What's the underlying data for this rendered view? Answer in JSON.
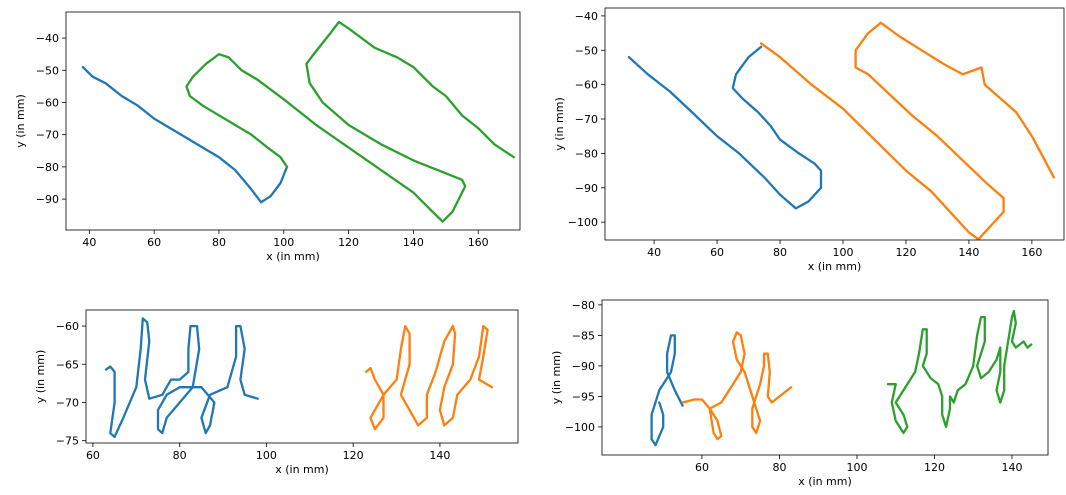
{
  "chart_data": [
    {
      "type": "line",
      "xlabel": "x (in mm)",
      "ylabel": "y (in mm)",
      "xlim": [
        32.8,
        172.9
      ],
      "ylim": [
        -99.6,
        -31.9
      ],
      "xticks": [
        40,
        60,
        80,
        100,
        120,
        140,
        160
      ],
      "yticks": [
        {
          "value": -40,
          "label": "−40"
        },
        {
          "value": -50,
          "label": "−50"
        },
        {
          "value": -60,
          "label": "−60"
        },
        {
          "value": -70,
          "label": "−70"
        },
        {
          "value": -80,
          "label": "−80"
        },
        {
          "value": -90,
          "label": "−90"
        }
      ],
      "series": [
        {
          "color": "#1f77b4",
          "x": [
            38,
            41,
            45,
            50,
            55,
            60,
            65,
            70,
            75,
            80,
            85,
            90,
            93,
            96,
            99,
            101
          ],
          "values": [
            -49,
            -52,
            -54,
            -58,
            -61,
            -65,
            -68,
            -71,
            -74,
            -77,
            -81,
            -87,
            -91,
            -89,
            -85,
            -80
          ]
        },
        {
          "color": "#2ca02c",
          "x": [
            101,
            99,
            95,
            90,
            85,
            80,
            75,
            71,
            70,
            72,
            76,
            80,
            83,
            87,
            92,
            100,
            110,
            120,
            130,
            140,
            146,
            149,
            152,
            154,
            156,
            155,
            150,
            140,
            130,
            120,
            112,
            108,
            107,
            110,
            114,
            117,
            120,
            128,
            135,
            140,
            146,
            150,
            155,
            160,
            165,
            171
          ],
          "values": [
            -80,
            -77,
            -74,
            -70,
            -67,
            -64,
            -61,
            -58,
            -55,
            -52,
            -48,
            -45,
            -46,
            -50,
            -53,
            -59,
            -67,
            -74,
            -81,
            -88,
            -94,
            -97,
            -94,
            -90,
            -86,
            -84,
            -82,
            -78,
            -73,
            -67,
            -60,
            -54,
            -48,
            -44,
            -39,
            -35,
            -37,
            -43,
            -46,
            -49,
            -55,
            -58,
            -64,
            -68,
            -73,
            -77
          ]
        }
      ]
    },
    {
      "type": "line",
      "xlabel": "x (in mm)",
      "ylabel": "y (in mm)",
      "xlim": [
        24.4,
        170.2
      ],
      "ylim": [
        -105.2,
        -37.7
      ],
      "xticks": [
        40,
        60,
        80,
        100,
        120,
        140,
        160
      ],
      "yticks": [
        {
          "value": -40,
          "label": "−40"
        },
        {
          "value": -50,
          "label": "−50"
        },
        {
          "value": -60,
          "label": "−60"
        },
        {
          "value": -70,
          "label": "−70"
        },
        {
          "value": -80,
          "label": "−80"
        },
        {
          "value": -90,
          "label": "−90"
        },
        {
          "value": -100,
          "label": "−100"
        }
      ],
      "series": [
        {
          "color": "#1f77b4",
          "x": [
            32,
            38,
            45,
            52,
            60,
            67,
            75,
            80,
            85,
            89,
            93,
            93,
            91,
            86,
            80,
            77,
            73,
            68,
            65,
            66,
            70,
            74
          ],
          "values": [
            -52,
            -57,
            -62,
            -68,
            -75,
            -80,
            -87,
            -92,
            -96,
            -94,
            -90,
            -85,
            -83,
            -80,
            -76,
            -72,
            -68,
            -64,
            -61,
            -57,
            -52,
            -49
          ]
        },
        {
          "color": "#ff7f0e",
          "x": [
            74,
            80,
            90,
            100,
            110,
            120,
            128,
            135,
            140,
            143,
            147,
            151,
            151,
            146,
            138,
            130,
            122,
            115,
            108,
            104,
            104,
            108,
            112,
            118,
            125,
            132,
            138,
            144,
            145,
            150,
            155,
            160,
            167
          ],
          "values": [
            -48,
            -52,
            -60,
            -67,
            -76,
            -85,
            -91,
            -98,
            -103,
            -105,
            -101,
            -97,
            -93,
            -89,
            -82,
            -75,
            -69,
            -63,
            -57,
            -55,
            -50,
            -45,
            -42,
            -46,
            -50,
            -54,
            -57,
            -55,
            -60,
            -64,
            -68,
            -75,
            -87
          ]
        }
      ]
    },
    {
      "type": "line",
      "xlabel": "x (in mm)",
      "ylabel": "y (in mm)",
      "xlim": [
        58.4,
        158.0
      ],
      "ylim": [
        -75.3,
        -57.9
      ],
      "xticks": [
        60,
        80,
        100,
        120,
        140
      ],
      "yticks": [
        {
          "value": -60,
          "label": "−60"
        },
        {
          "value": -65,
          "label": "−65"
        },
        {
          "value": -70,
          "label": "−70"
        },
        {
          "value": -75,
          "label": "−75"
        }
      ],
      "series": [
        {
          "color": "#1f77b4",
          "x": [
            63,
            64,
            65,
            65,
            64,
            65,
            67,
            70,
            71,
            71.5,
            72.5,
            73,
            72,
            73,
            76,
            78,
            80,
            82,
            82,
            82.5,
            84,
            84.5,
            83,
            80,
            77,
            76,
            75,
            75,
            77,
            80,
            85,
            88,
            87,
            86,
            85,
            87,
            91,
            93,
            93,
            94,
            95,
            94,
            95,
            98
          ],
          "values": [
            -65.7,
            -65.3,
            -66,
            -70,
            -74,
            -74.5,
            -72,
            -68,
            -63,
            -59,
            -59.5,
            -62,
            -67,
            -69.5,
            -69,
            -67,
            -67,
            -66,
            -63,
            -60,
            -60,
            -63,
            -68,
            -70,
            -72,
            -74,
            -73.5,
            -71,
            -69,
            -68,
            -68,
            -70,
            -73,
            -74,
            -72,
            -69,
            -68,
            -64,
            -60,
            -60,
            -63,
            -67,
            -69,
            -69.5
          ]
        },
        {
          "color": "#ff7f0e",
          "x": [
            123,
            124,
            125,
            127,
            127,
            125,
            124,
            127,
            130,
            131,
            132,
            133,
            133,
            131,
            133,
            135,
            137,
            137,
            139,
            141,
            143,
            143.5,
            143,
            141,
            140,
            141,
            143,
            144,
            147,
            149,
            150,
            151,
            150,
            149,
            152
          ],
          "values": [
            -66,
            -65.5,
            -67,
            -69,
            -72,
            -73.5,
            -72,
            -69,
            -67,
            -63,
            -60,
            -61,
            -65,
            -69,
            -71,
            -73,
            -72,
            -69,
            -66,
            -62,
            -60,
            -61,
            -65,
            -68,
            -71,
            -73,
            -72,
            -69,
            -67,
            -64,
            -60,
            -60.5,
            -64,
            -67,
            -68
          ]
        }
      ]
    },
    {
      "type": "line",
      "xlabel": "x (in mm)",
      "ylabel": "y (in mm)",
      "xlim": [
        34.2,
        149.3
      ],
      "ylim": [
        -104.6,
        -79.2
      ],
      "xticks": [
        60,
        80,
        100,
        120,
        140
      ],
      "yticks": [
        {
          "value": -80,
          "label": "−80"
        },
        {
          "value": -85,
          "label": "−85"
        },
        {
          "value": -90,
          "label": "−90"
        },
        {
          "value": -95,
          "label": "−95"
        },
        {
          "value": -100,
          "label": "−100"
        }
      ],
      "series": [
        {
          "color": "#1f77b4",
          "x": [
            49,
            50,
            50,
            48,
            47,
            47,
            49,
            52,
            53,
            53,
            52,
            51,
            51,
            53,
            55
          ],
          "values": [
            -96,
            -98,
            -100,
            -103,
            -102,
            -98,
            -94,
            -91,
            -88,
            -85,
            -85,
            -88,
            -91,
            -94,
            -96.5
          ]
        },
        {
          "color": "#ff7f0e",
          "x": [
            55,
            58,
            60,
            62,
            63,
            64,
            65,
            64,
            62,
            65,
            68,
            70,
            71,
            70,
            69,
            68,
            69,
            71,
            73,
            75,
            74,
            73,
            73,
            75,
            76,
            76,
            77,
            77.5,
            77,
            78,
            80,
            83
          ],
          "values": [
            -96,
            -95.5,
            -95.5,
            -97,
            -101,
            -102,
            -101.5,
            -99,
            -97,
            -96,
            -93,
            -91,
            -88,
            -85,
            -84.5,
            -86,
            -89,
            -91,
            -95,
            -99,
            -101,
            -100,
            -97,
            -93,
            -90,
            -88,
            -88,
            -91,
            -95,
            -96,
            -95,
            -93.5
          ]
        },
        {
          "color": "#2ca02c",
          "x": [
            108,
            110,
            109,
            110,
            112,
            113,
            112,
            110,
            113,
            115,
            116,
            117,
            118,
            118,
            117,
            119,
            121,
            122,
            122,
            123,
            124,
            124,
            125,
            126,
            128,
            130,
            131,
            132,
            133,
            133,
            131,
            132,
            134,
            136,
            137,
            137,
            136,
            137,
            138,
            138,
            139,
            140,
            140.5,
            141,
            140,
            141,
            143,
            144,
            145
          ],
          "values": [
            -93,
            -93,
            -96,
            -99,
            -101,
            -100,
            -98,
            -96,
            -93,
            -91,
            -88,
            -84,
            -84,
            -88,
            -90,
            -92,
            -93,
            -95,
            -98,
            -100,
            -97,
            -95,
            -96,
            -94,
            -93,
            -90,
            -85,
            -82,
            -82,
            -86,
            -90,
            -92,
            -91,
            -89,
            -87,
            -91,
            -94,
            -96,
            -94,
            -90,
            -86,
            -82,
            -81,
            -83,
            -86,
            -87,
            -86,
            -87,
            -86.5
          ]
        }
      ]
    }
  ]
}
